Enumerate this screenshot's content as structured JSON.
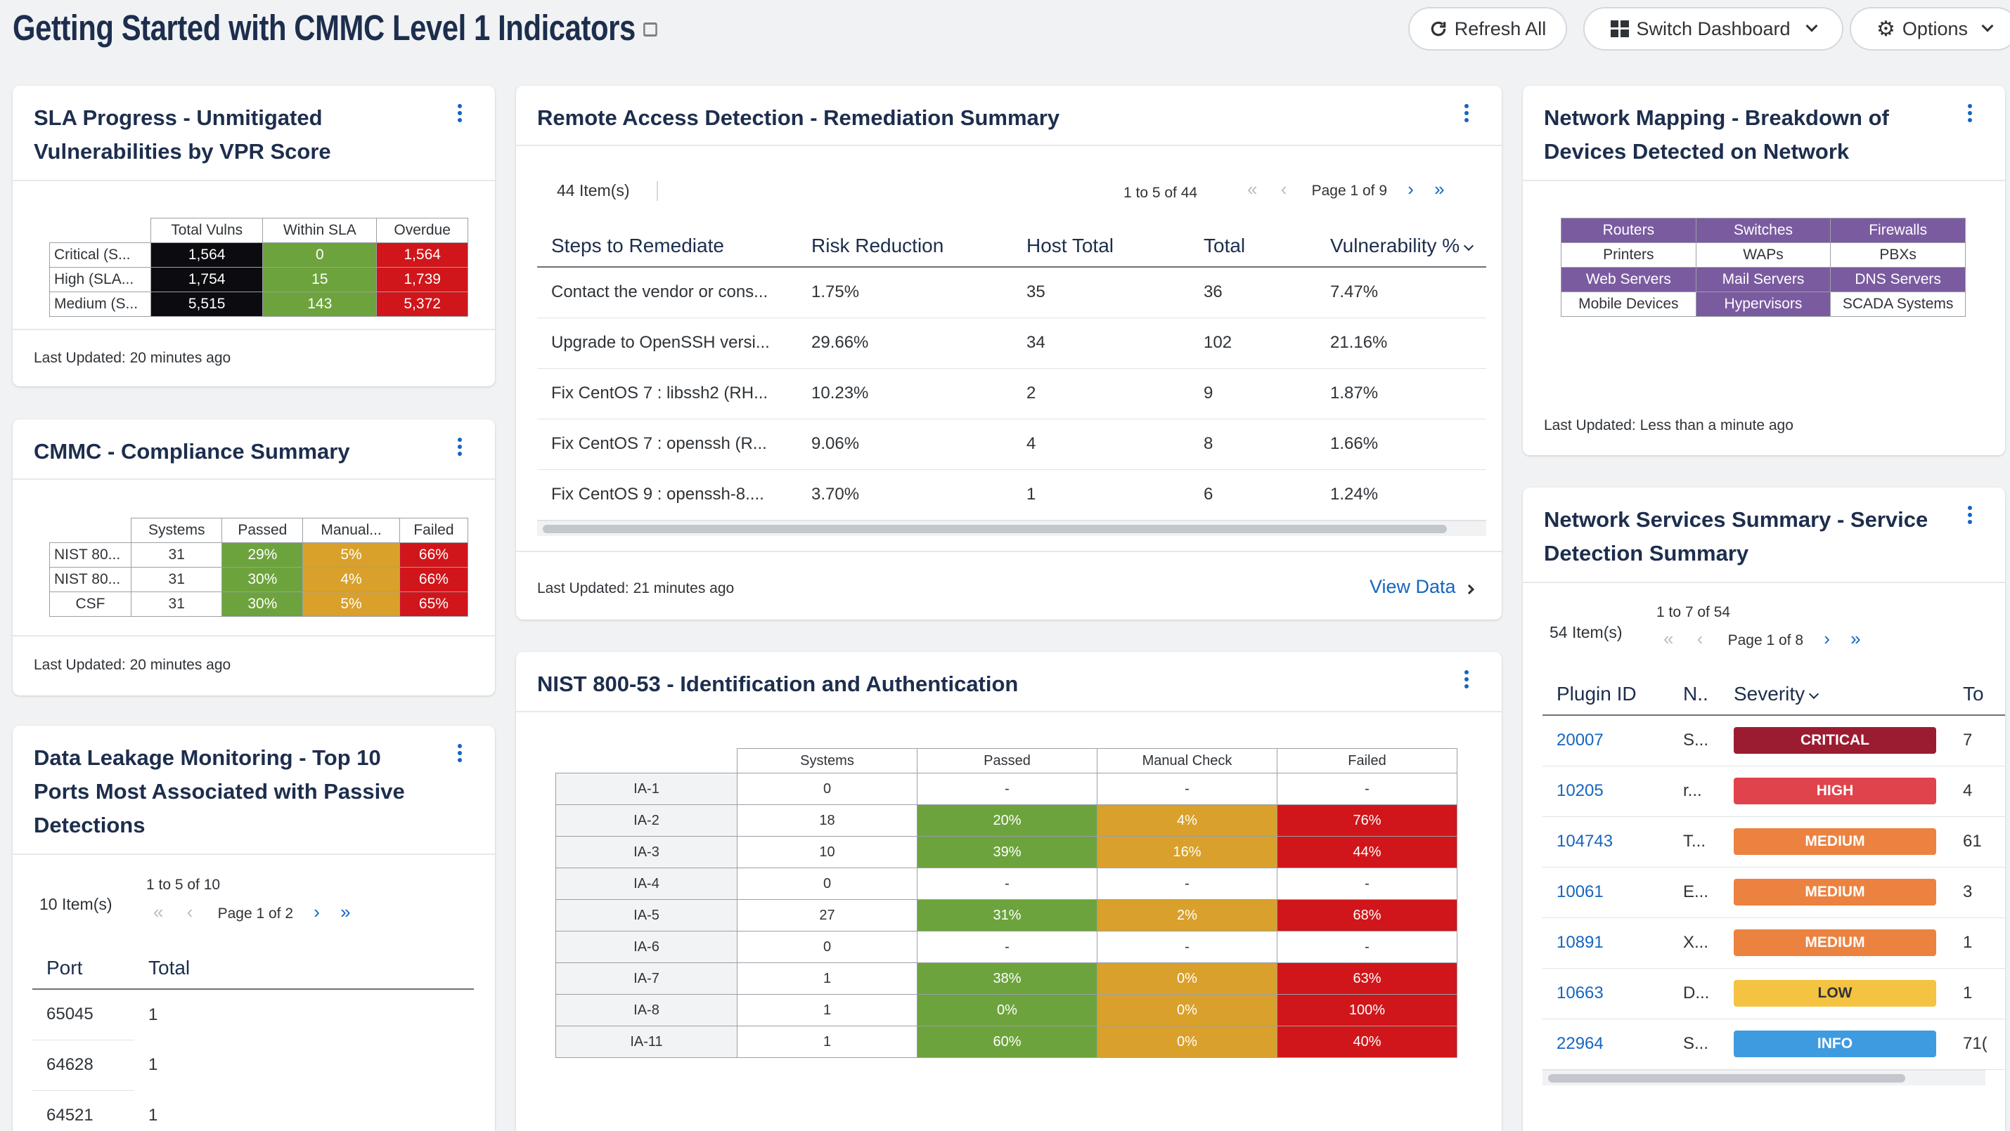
{
  "header": {
    "title": "Getting Started with CMMC Level 1 Indicators",
    "book_icon": "book-icon",
    "buttons": {
      "refresh": "Refresh All",
      "switch": "Switch Dashboard",
      "options": "Options"
    }
  },
  "sla": {
    "title_l1": "SLA Progress - Unmitigated",
    "title_l2": "Vulnerabilities by VPR Score",
    "cols": [
      "Total Vulns",
      "Within SLA",
      "Overdue"
    ],
    "rows": [
      {
        "label": "Critical (S...",
        "total": "1,564",
        "within": "0",
        "overdue": "1,564"
      },
      {
        "label": "High (SLA...",
        "total": "1,754",
        "within": "15",
        "overdue": "1,739"
      },
      {
        "label": "Medium (S...",
        "total": "5,515",
        "within": "143",
        "overdue": "5,372"
      }
    ],
    "updated": "Last Updated: 20 minutes ago"
  },
  "cmmc": {
    "title": "CMMC - Compliance Summary",
    "cols": [
      "Systems",
      "Passed",
      "Manual...",
      "Failed"
    ],
    "rows": [
      {
        "label": "NIST 80...",
        "systems": "31",
        "passed": "29%",
        "manual": "5%",
        "failed": "66%"
      },
      {
        "label": "NIST 80...",
        "systems": "31",
        "passed": "30%",
        "manual": "4%",
        "failed": "66%"
      },
      {
        "label": "CSF",
        "systems": "31",
        "passed": "30%",
        "manual": "5%",
        "failed": "65%"
      }
    ],
    "updated": "Last Updated: 20 minutes ago"
  },
  "leak": {
    "title_l1": "Data Leakage Monitoring - Top 10",
    "title_l2": "Ports Most Associated with Passive",
    "title_l3": "Detections",
    "items": "10 Item(s)",
    "range": "1 to 5 of 10",
    "page": "Page 1 of 2",
    "cols": [
      "Port",
      "Total"
    ],
    "rows": [
      {
        "port": "65045",
        "total": "1"
      },
      {
        "port": "64628",
        "total": "1"
      },
      {
        "port": "64521",
        "total": "1"
      }
    ]
  },
  "remote": {
    "title": "Remote Access Detection - Remediation Summary",
    "items": "44 Item(s)",
    "range": "1 to 5 of 44",
    "page": "Page 1 of 9",
    "cols": [
      "Steps to Remediate",
      "Risk Reduction",
      "Host Total",
      "Total",
      "Vulnerability %"
    ],
    "rows": [
      {
        "step": "Contact the vendor or cons...",
        "risk": "1.75%",
        "host": "35",
        "total": "36",
        "vuln": "7.47%"
      },
      {
        "step": "Upgrade to OpenSSH versi...",
        "risk": "29.66%",
        "host": "34",
        "total": "102",
        "vuln": "21.16%"
      },
      {
        "step": "Fix CentOS 7 : libssh2 (RH...",
        "risk": "10.23%",
        "host": "2",
        "total": "9",
        "vuln": "1.87%"
      },
      {
        "step": "Fix CentOS 7 : openssh (R...",
        "risk": "9.06%",
        "host": "4",
        "total": "8",
        "vuln": "1.66%"
      },
      {
        "step": "Fix CentOS 9 : openssh-8....",
        "risk": "3.70%",
        "host": "1",
        "total": "6",
        "vuln": "1.24%"
      }
    ],
    "updated": "Last Updated: 21 minutes ago",
    "view_data": "View Data"
  },
  "nist": {
    "title": "NIST 800-53 - Identification and Authentication",
    "cols": [
      "Systems",
      "Passed",
      "Manual Check",
      "Failed"
    ],
    "rows": [
      {
        "label": "IA-1",
        "systems": "0",
        "passed": "-",
        "manual": "-",
        "failed": "-"
      },
      {
        "label": "IA-2",
        "systems": "18",
        "passed": "20%",
        "manual": "4%",
        "failed": "76%"
      },
      {
        "label": "IA-3",
        "systems": "10",
        "passed": "39%",
        "manual": "16%",
        "failed": "44%"
      },
      {
        "label": "IA-4",
        "systems": "0",
        "passed": "-",
        "manual": "-",
        "failed": "-"
      },
      {
        "label": "IA-5",
        "systems": "27",
        "passed": "31%",
        "manual": "2%",
        "failed": "68%"
      },
      {
        "label": "IA-6",
        "systems": "0",
        "passed": "-",
        "manual": "-",
        "failed": "-"
      },
      {
        "label": "IA-7",
        "systems": "1",
        "passed": "38%",
        "manual": "0%",
        "failed": "63%"
      },
      {
        "label": "IA-8",
        "systems": "1",
        "passed": "0%",
        "manual": "0%",
        "failed": "100%"
      },
      {
        "label": "IA-11",
        "systems": "1",
        "passed": "60%",
        "manual": "0%",
        "failed": "40%"
      }
    ]
  },
  "netmap": {
    "title_l1": "Network Mapping - Breakdown of",
    "title_l2": "Devices Detected on Network",
    "grid": [
      [
        "Routers",
        "Switches",
        "Firewalls"
      ],
      [
        "Printers",
        "WAPs",
        "PBXs"
      ],
      [
        "Web Servers",
        "Mail Servers",
        "DNS Servers"
      ],
      [
        "Mobile Devices",
        "Hypervisors",
        "SCADA Systems"
      ]
    ],
    "updated": "Last Updated: Less than a minute ago"
  },
  "netsvc": {
    "title_l1": "Network Services Summary - Service",
    "title_l2": "Detection Summary",
    "items": "54 Item(s)",
    "range": "1 to 7 of 54",
    "page": "Page 1 of 8",
    "cols": [
      "Plugin ID",
      "N..",
      "Severity",
      "To"
    ],
    "rows": [
      {
        "id": "20007",
        "name": "S...",
        "sev": "CRITICAL",
        "total": "7"
      },
      {
        "id": "10205",
        "name": "r...",
        "sev": "HIGH",
        "total": "4"
      },
      {
        "id": "104743",
        "name": "T...",
        "sev": "MEDIUM",
        "total": "61"
      },
      {
        "id": "10061",
        "name": "E...",
        "sev": "MEDIUM",
        "total": "3"
      },
      {
        "id": "10891",
        "name": "X...",
        "sev": "MEDIUM",
        "total": "1"
      },
      {
        "id": "10663",
        "name": "D...",
        "sev": "LOW",
        "total": "1"
      },
      {
        "id": "22964",
        "name": "S...",
        "sev": "INFO",
        "total": "71("
      }
    ]
  },
  "colors": {
    "critical": "#9b1c31",
    "high": "#e0434c",
    "medium": "#ec8240",
    "low": "#f5c342",
    "info": "#3f9be0",
    "accent": "#1565c0",
    "pass": "#6da33d",
    "fail": "#d0161a",
    "manual": "#d9a02b"
  }
}
